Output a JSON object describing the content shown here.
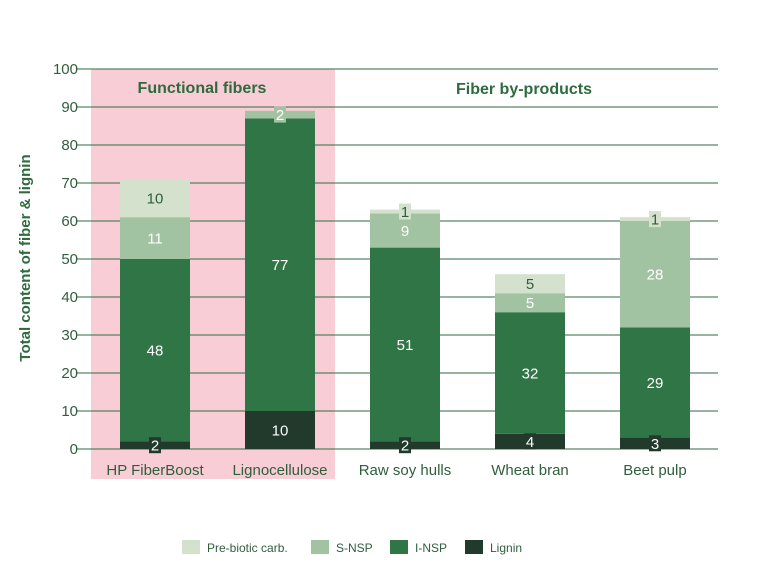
{
  "chart_data": {
    "type": "bar",
    "stacked": true,
    "ylabel": "Total content of fiber & lignin",
    "xlabel": "",
    "ylim": [
      0,
      100
    ],
    "yticks": [
      0,
      10,
      20,
      30,
      40,
      50,
      60,
      70,
      80,
      90,
      100
    ],
    "grid": true,
    "legend_position": "bottom",
    "categories": [
      "HP FiberBoost",
      "Lignocellulose",
      "Raw soy hulls",
      "Wheat bran",
      "Beet pulp"
    ],
    "groups": [
      {
        "label": "Functional fibers",
        "categories": [
          "HP FiberBoost",
          "Lignocellulose"
        ],
        "highlight": "#f9cdd6"
      },
      {
        "label": "Fiber by-products",
        "categories": [
          "Raw soy hulls",
          "Wheat bran",
          "Beet pulp"
        ]
      }
    ],
    "series": [
      {
        "name": "Lignin",
        "color": "#213a2c",
        "label_color": "#ffffff",
        "values": [
          2,
          10,
          2,
          4,
          3
        ]
      },
      {
        "name": "I-NSP",
        "color": "#2f7546",
        "label_color": "#ffffff",
        "values": [
          48,
          77,
          51,
          32,
          29
        ]
      },
      {
        "name": "S-NSP",
        "color": "#a2c3a2",
        "label_color": "#ffffff",
        "values": [
          11,
          2,
          9,
          5,
          28
        ]
      },
      {
        "name": "Pre-biotic carb.",
        "color": "#d4e2cd",
        "label_color": "#2f5e3d",
        "values": [
          10,
          0,
          1,
          5,
          1
        ]
      }
    ],
    "legend_order": [
      "Pre-biotic carb.",
      "S-NSP",
      "I-NSP",
      "Lignin"
    ],
    "axis_color": "#2f6b3e"
  }
}
